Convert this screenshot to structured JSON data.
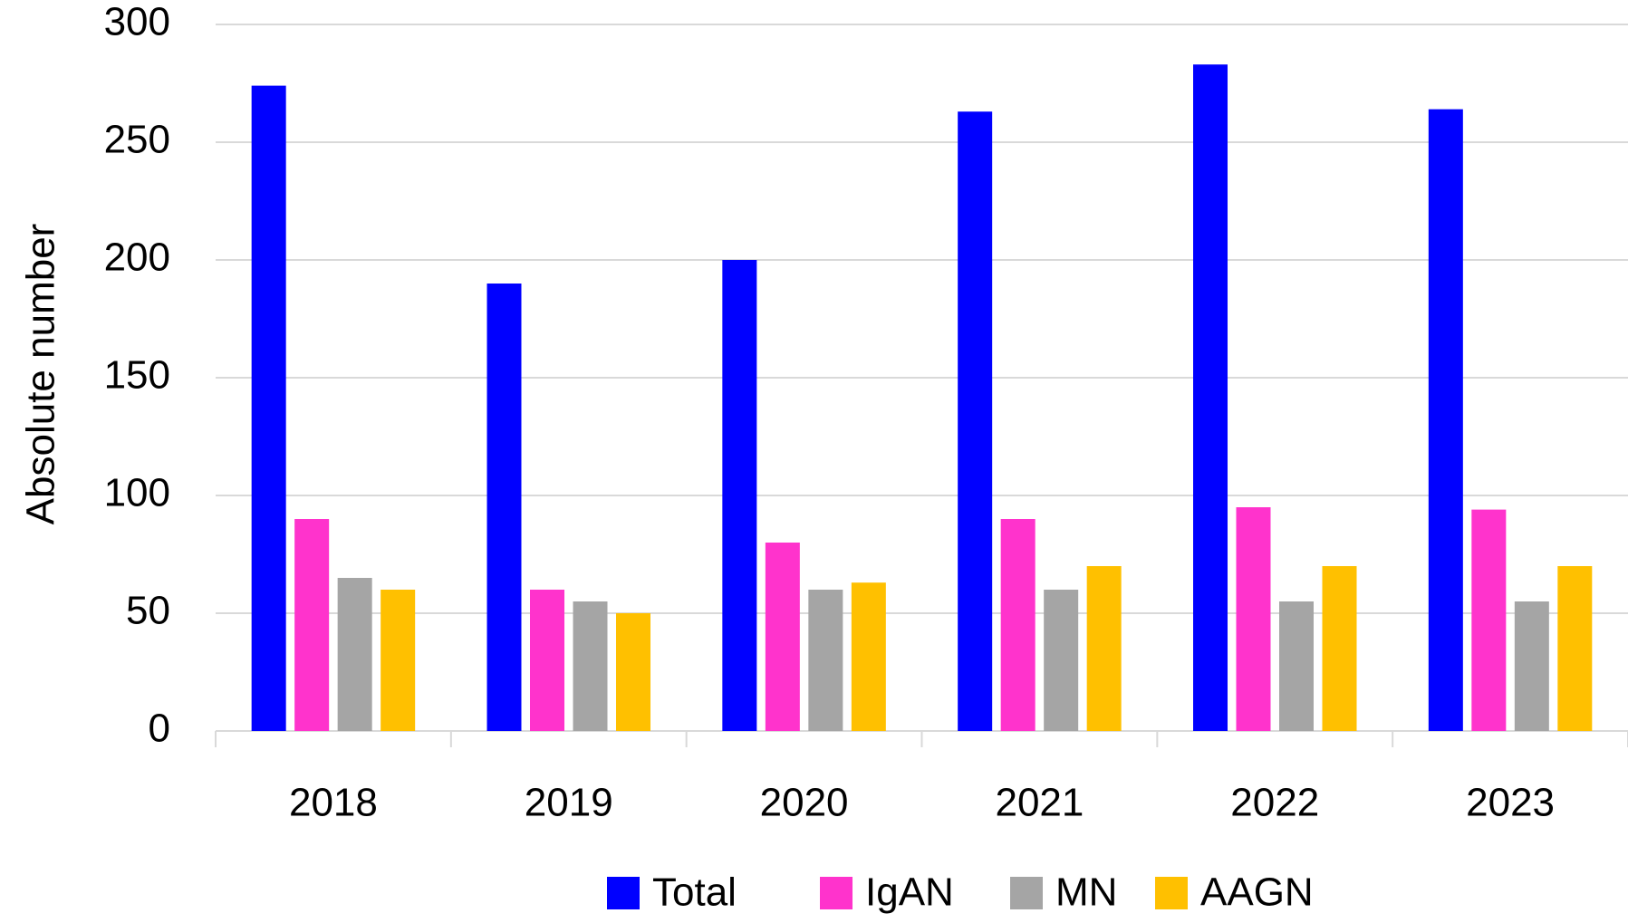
{
  "chart_data": {
    "type": "bar",
    "y_label": "Absolute number",
    "categories": [
      "2018",
      "2019",
      "2020",
      "2021",
      "2022",
      "2023"
    ],
    "series": [
      {
        "name": "Total",
        "color": "#0000ff",
        "values": [
          274,
          190,
          200,
          263,
          283,
          264
        ]
      },
      {
        "name": "IgAN",
        "color": "#ff33cc",
        "values": [
          90,
          60,
          80,
          90,
          95,
          94
        ]
      },
      {
        "name": "MN",
        "color": "#a5a5a5",
        "values": [
          65,
          55,
          60,
          60,
          55,
          55
        ]
      },
      {
        "name": "AAGN",
        "color": "#ffc000",
        "values": [
          60,
          50,
          63,
          70,
          70,
          70
        ]
      }
    ],
    "ylim": [
      0,
      300
    ],
    "yticks": [
      0,
      50,
      100,
      150,
      200,
      250,
      300
    ],
    "grid": true,
    "legend": "bottom"
  }
}
